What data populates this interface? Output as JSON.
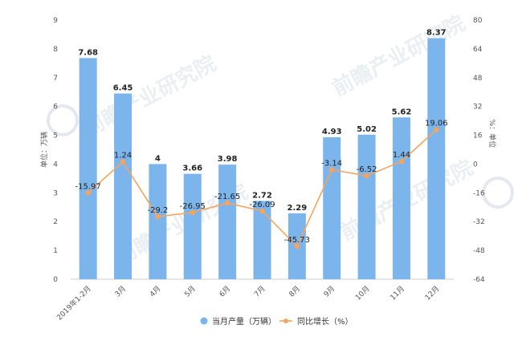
{
  "chart_data": {
    "type": "bar",
    "categories": [
      "2019年1-2月",
      "3月",
      "4月",
      "5月",
      "6月",
      "7月",
      "8月",
      "9月",
      "10月",
      "11月",
      "12月"
    ],
    "series": [
      {
        "name": "当月产量（万辆）",
        "chart": "bar",
        "axis": "left",
        "values": [
          7.68,
          6.45,
          4,
          3.66,
          3.98,
          2.72,
          2.29,
          4.93,
          5.02,
          5.62,
          8.37
        ],
        "labels": [
          "7.68",
          "6.45",
          "4",
          "3.66",
          "3.98",
          "2.72",
          "2.29",
          "4.93",
          "5.02",
          "5.62",
          "8.37"
        ],
        "color": "#7cb5ec"
      },
      {
        "name": "同比增长（%）",
        "chart": "line",
        "axis": "right",
        "values": [
          -15.97,
          1.24,
          -29.2,
          -26.95,
          -21.65,
          -26.09,
          -45.73,
          -3.14,
          -6.52,
          1.44,
          19.06
        ],
        "labels": [
          "-15.97",
          "1.24",
          "-29.2",
          "-26.95",
          "-21.65",
          "-26.09",
          "-45.73",
          "-3.14",
          "-6.52",
          "1.44",
          "19.06"
        ],
        "color": "#f7a35c"
      }
    ],
    "y_left": {
      "label": "单位：万辆",
      "min": 0,
      "max": 9,
      "ticks": [
        0,
        1,
        2,
        3,
        4,
        5,
        6,
        7,
        8,
        9
      ]
    },
    "y_right": {
      "label": "%：单位",
      "min": -64,
      "max": 80,
      "ticks": [
        -64,
        -48,
        -32,
        -16,
        0,
        16,
        32,
        48,
        64,
        80
      ]
    },
    "grid": false,
    "legend": "bottom-center",
    "watermark": "前瞻产业研究院"
  }
}
